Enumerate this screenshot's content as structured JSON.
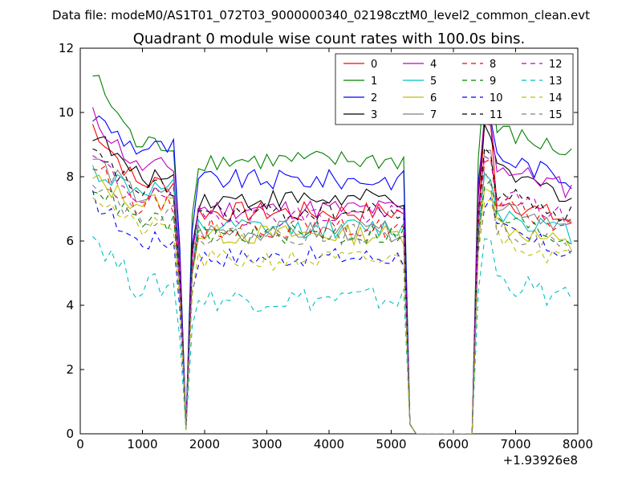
{
  "chart_data": {
    "type": "line",
    "subtitle": "Data file: modeM0/AS1T01_072T03_9000000340_02198cztM0_level2_common_clean.evt",
    "title": "Quadrant 0 module wise count rates with 100.0s bins.",
    "xlim": [
      0,
      8000
    ],
    "ylim": [
      0,
      12
    ],
    "x_offset_label": "+1.93926e8",
    "xticks": [
      "0",
      "1000",
      "2000",
      "3000",
      "4000",
      "5000",
      "6000",
      "7000",
      "8000"
    ],
    "yticks": [
      "0",
      "2",
      "4",
      "6",
      "8",
      "10",
      "12"
    ],
    "grid": false,
    "legend_position": "top-right",
    "series": [
      {
        "name": "0",
        "color": "#ff0000",
        "dash": "solid",
        "level_a": 7.8,
        "level_b": 6.9,
        "level_c": 7.4,
        "start": 9.6,
        "amp": 0.25
      },
      {
        "name": "1",
        "color": "#008000",
        "dash": "solid",
        "level_a": 9.0,
        "level_b": 8.5,
        "level_c": 9.5,
        "start": 11.2,
        "amp": 0.25
      },
      {
        "name": "2",
        "color": "#0000ff",
        "dash": "solid",
        "level_a": 8.9,
        "level_b": 7.9,
        "level_c": 8.7,
        "start": 9.9,
        "amp": 0.25
      },
      {
        "name": "3",
        "color": "#000000",
        "dash": "solid",
        "level_a": 8.0,
        "level_b": 7.3,
        "level_c": 8.2,
        "start": 9.4,
        "amp": 0.25
      },
      {
        "name": "4",
        "color": "#bf00bf",
        "dash": "solid",
        "level_a": 8.3,
        "level_b": 7.0,
        "level_c": 8.4,
        "start": 9.9,
        "amp": 0.25
      },
      {
        "name": "5",
        "color": "#00bfbf",
        "dash": "solid",
        "level_a": 7.6,
        "level_b": 6.4,
        "level_c": 7.0,
        "start": 8.2,
        "amp": 0.25
      },
      {
        "name": "6",
        "color": "#bfbf00",
        "dash": "solid",
        "level_a": 7.2,
        "level_b": 6.2,
        "level_c": 6.6,
        "start": 7.9,
        "amp": 0.25
      },
      {
        "name": "7",
        "color": "#808080",
        "dash": "solid",
        "level_a": 7.4,
        "level_b": 6.3,
        "level_c": 7.3,
        "start": 8.6,
        "amp": 0.25
      },
      {
        "name": "8",
        "color": "#ff0000",
        "dash": "dashed",
        "level_a": 7.1,
        "level_b": 6.4,
        "level_c": 7.2,
        "start": 8.4,
        "amp": 0.25
      },
      {
        "name": "9",
        "color": "#008000",
        "dash": "dashed",
        "level_a": 6.6,
        "level_b": 6.2,
        "level_c": 6.8,
        "start": 7.8,
        "amp": 0.25
      },
      {
        "name": "10",
        "color": "#0000ff",
        "dash": "dashed",
        "level_a": 6.0,
        "level_b": 5.5,
        "level_c": 6.4,
        "start": 7.3,
        "amp": 0.25
      },
      {
        "name": "11",
        "color": "#000000",
        "dash": "dashed",
        "level_a": 7.6,
        "level_b": 6.9,
        "level_c": 7.6,
        "start": 8.7,
        "amp": 0.25
      },
      {
        "name": "12",
        "color": "#bf00bf",
        "dash": "dashed",
        "level_a": 7.4,
        "level_b": 6.8,
        "level_c": 7.5,
        "start": 8.6,
        "amp": 0.25
      },
      {
        "name": "13",
        "color": "#00bfbf",
        "dash": "dashed",
        "level_a": 4.6,
        "level_b": 4.2,
        "level_c": 4.9,
        "start": 6.2,
        "amp": 0.25
      },
      {
        "name": "14",
        "color": "#bfbf00",
        "dash": "dashed",
        "level_a": 6.4,
        "level_b": 5.4,
        "level_c": 6.2,
        "start": 7.5,
        "amp": 0.25
      },
      {
        "name": "15",
        "color": "#808080",
        "dash": "dashed",
        "level_a": 6.8,
        "level_b": 6.2,
        "level_c": 6.5,
        "start": 8.0,
        "amp": 0.25
      }
    ]
  }
}
